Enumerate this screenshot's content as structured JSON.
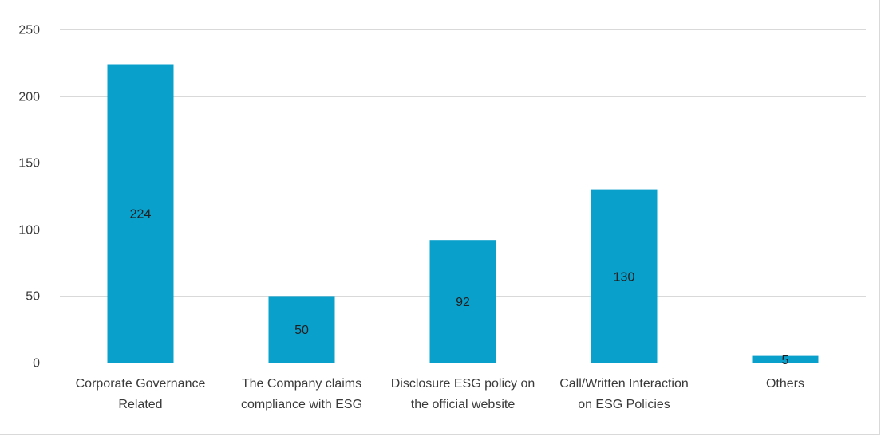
{
  "chart_data": {
    "type": "bar",
    "title": "",
    "xlabel": "",
    "ylabel": "",
    "categories": [
      [
        "Corporate Governance",
        "Related"
      ],
      [
        "The Company claims",
        "compliance with ESG"
      ],
      [
        "Disclosure ESG policy on",
        "the official website"
      ],
      [
        "Call/Written Interaction",
        "on ESG Policies"
      ],
      [
        "Others"
      ]
    ],
    "values": [
      224,
      50,
      92,
      130,
      5
    ],
    "data_labels": [
      "224",
      "50",
      "92",
      "130",
      "5"
    ],
    "ylim": [
      0,
      250
    ],
    "yticks": [
      0,
      50,
      100,
      150,
      200,
      250
    ],
    "ytick_labels": [
      "0",
      "50",
      "100",
      "150",
      "200",
      "250"
    ],
    "grid": true,
    "legend": "none",
    "bar_color": "#0AA0CC",
    "grid_color": "#D9D9D9"
  }
}
